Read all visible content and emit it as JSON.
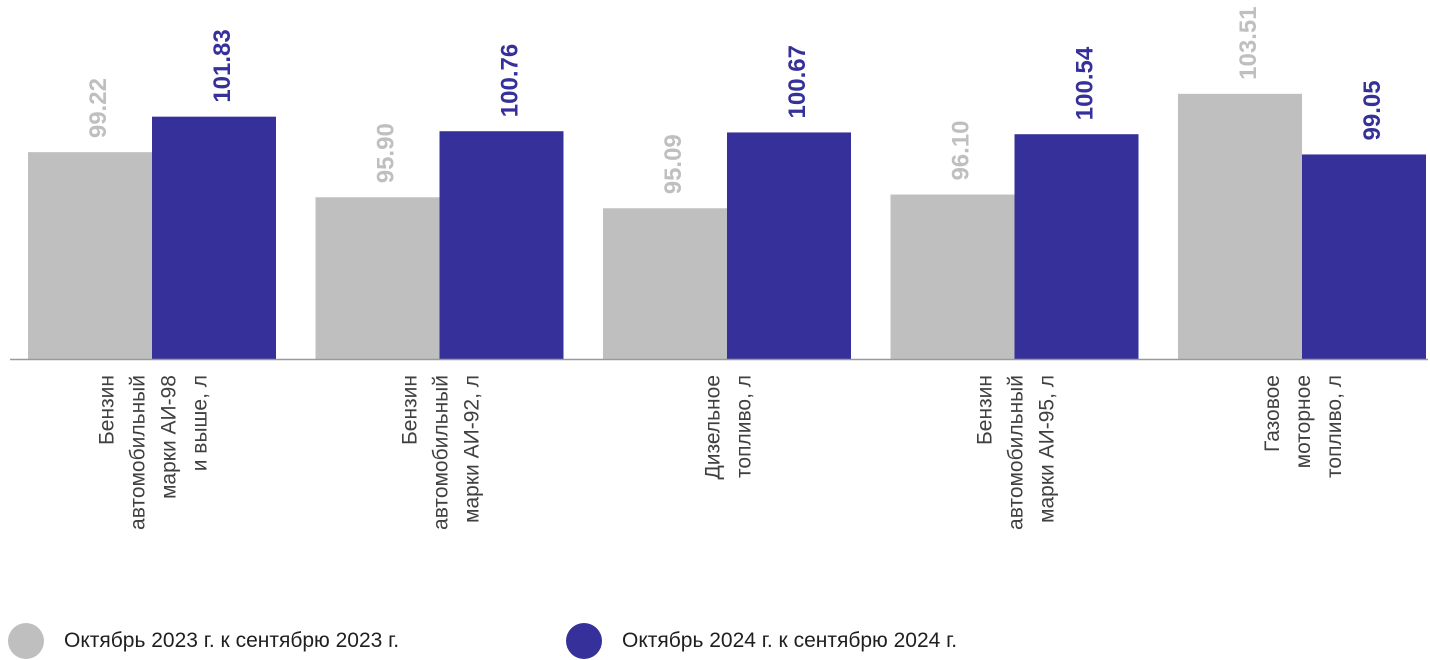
{
  "chart_data": {
    "type": "bar",
    "categories": [
      [
        "Бензин",
        "автомобильный",
        "марки АИ-98",
        "и выше, л"
      ],
      [
        "Бензин",
        "автомобильный",
        "марки АИ-92, л"
      ],
      [
        "Дизельное",
        "топливо, л"
      ],
      [
        "Бензин",
        "автомобильный",
        "марки АИ-95, л"
      ],
      [
        "Газовое",
        "моторное",
        "топливо, л"
      ]
    ],
    "series": [
      {
        "name": "Октябрь 2023 г. к сентябрю 2023 г.",
        "color": "#bfbfbf",
        "values": [
          99.22,
          95.9,
          95.09,
          96.1,
          103.51
        ]
      },
      {
        "name": "Октябрь 2024 г. к сентябрю 2024 г.",
        "color": "#35309a",
        "values": [
          101.83,
          100.76,
          100.67,
          100.54,
          99.05
        ]
      }
    ],
    "value_labels": [
      [
        "99.22",
        "95.90",
        "95.09",
        "96.10",
        "103.51"
      ],
      [
        "101.83",
        "100.76",
        "100.67",
        "100.54",
        "99.05"
      ]
    ],
    "ylim": [
      84,
      106
    ],
    "grid": false,
    "legend_position": "bottom"
  }
}
